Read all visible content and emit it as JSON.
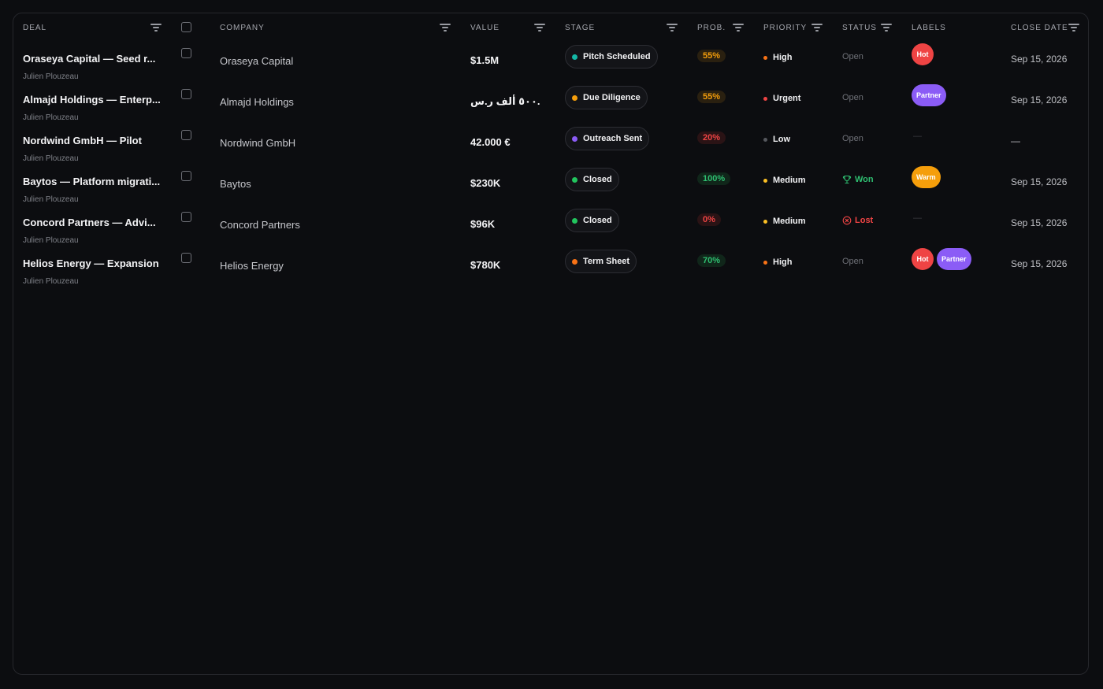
{
  "columns": {
    "deal": "DEAL",
    "company": "COMPANY",
    "value": "VALUE",
    "stage": "STAGE",
    "prob": "PROB.",
    "priority": "PRIORITY",
    "status": "STATUS",
    "labels": "LABELS",
    "close_date": "CLOSE DATE"
  },
  "colors": {
    "stage_teal": "#14b8a6",
    "stage_amber": "#f59e0b",
    "stage_violet": "#8b5cf6",
    "stage_green": "#22c55e",
    "stage_orange": "#f97316",
    "hot": "#ef4444",
    "partner": "#8b5cf6",
    "warm": "#f59e0b",
    "won": "#2fbf71",
    "lost": "#ef4444"
  },
  "rows": [
    {
      "deal": "Oraseya Capital — Seed r...",
      "owner": "Julien Plouzeau",
      "company": "Oraseya Capital",
      "value": "$1.5M",
      "stage": "Pitch Scheduled",
      "stage_color": "#14b8a6",
      "prob": "55%",
      "prob_color": "#f59e0b",
      "prob_bg": "#2a2010",
      "priority": "High",
      "priority_color": "#f97316",
      "status": "Open",
      "labels": [
        {
          "text": "Hot",
          "color": "#ef4444"
        }
      ],
      "close_date": "Sep 15, 2026"
    },
    {
      "deal": "Almajd Holdings — Enterp...",
      "owner": "Julien Plouzeau",
      "company": "Almajd Holdings",
      "value": "٥٠٠ ألف ر.س.",
      "stage": "Due Diligence",
      "stage_color": "#f59e0b",
      "prob": "55%",
      "prob_color": "#f59e0b",
      "prob_bg": "#2a2010",
      "priority": "Urgent",
      "priority_color": "#ef4444",
      "status": "Open",
      "labels": [
        {
          "text": "Partner",
          "color": "#8b5cf6"
        }
      ],
      "close_date": "Sep 15, 2026"
    },
    {
      "deal": "Nordwind GmbH — Pilot",
      "owner": "Julien Plouzeau",
      "company": "Nordwind GmbH",
      "value": "42.000 €",
      "stage": "Outreach Sent",
      "stage_color": "#8b5cf6",
      "prob": "20%",
      "prob_color": "#ef4444",
      "prob_bg": "#2a1315",
      "priority": "Low",
      "priority_color": "#55575d",
      "status": "Open",
      "labels": [],
      "labels_empty": "—",
      "close_date": "—"
    },
    {
      "deal": "Baytos — Platform migrati...",
      "owner": "Julien Plouzeau",
      "company": "Baytos",
      "value": "$230K",
      "stage": "Closed",
      "stage_color": "#22c55e",
      "prob": "100%",
      "prob_color": "#2fbf71",
      "prob_bg": "#10261a",
      "priority": "Medium",
      "priority_color": "#fbbf24",
      "status": "Won",
      "status_kind": "won",
      "labels": [
        {
          "text": "Warm",
          "color": "#f59e0b"
        }
      ],
      "close_date": "Sep 15, 2026"
    },
    {
      "deal": "Concord Partners — Advi...",
      "owner": "Julien Plouzeau",
      "company": "Concord Partners",
      "value": "$96K",
      "stage": "Closed",
      "stage_color": "#22c55e",
      "prob": "0%",
      "prob_color": "#ef4444",
      "prob_bg": "#2a1315",
      "priority": "Medium",
      "priority_color": "#fbbf24",
      "status": "Lost",
      "status_kind": "lost",
      "labels": [],
      "labels_empty": "—",
      "close_date": "Sep 15, 2026"
    },
    {
      "deal": "Helios Energy — Expansion",
      "owner": "Julien Plouzeau",
      "company": "Helios Energy",
      "value": "$780K",
      "stage": "Term Sheet",
      "stage_color": "#f97316",
      "prob": "70%",
      "prob_color": "#2fbf71",
      "prob_bg": "#10261a",
      "priority": "High",
      "priority_color": "#f97316",
      "status": "Open",
      "labels": [
        {
          "text": "Hot",
          "color": "#ef4444"
        },
        {
          "text": "Partner",
          "color": "#8b5cf6"
        }
      ],
      "close_date": "Sep 15, 2026"
    }
  ]
}
